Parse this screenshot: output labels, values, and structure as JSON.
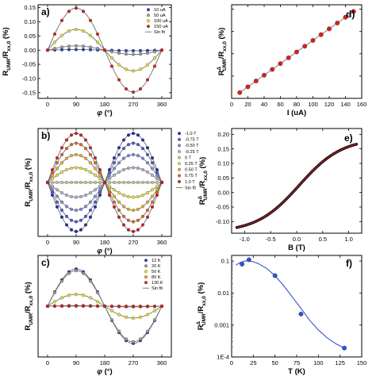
{
  "chart_data": [
    {
      "id": "a",
      "panel_label": "a)",
      "type": "scatter",
      "xlabel": "φ (°)",
      "ylabel": "R_UMR/R_xx,0 (%)",
      "xlim": [
        -30,
        390
      ],
      "ylim": [
        -0.17,
        0.16
      ],
      "xticks": [
        0,
        90,
        180,
        270,
        360
      ],
      "yticks": [
        -0.15,
        -0.1,
        -0.05,
        0.0,
        0.05,
        0.1,
        0.15
      ],
      "ytick_labels": [
        "-0.15",
        "-0.10",
        "-0.05",
        "0.00",
        "0.05",
        "0.10",
        "0.15"
      ],
      "x": [
        0,
        22.5,
        45,
        67.5,
        90,
        112.5,
        135,
        157.5,
        180,
        202.5,
        225,
        247.5,
        270,
        292.5,
        315,
        337.5,
        360
      ],
      "series": [
        {
          "name": "10 uA",
          "color": "#2b3fbf",
          "amplitude": 0.002
        },
        {
          "name": "50 uA",
          "color": "#9b9b9b",
          "amplitude": 0.015
        },
        {
          "name": "100 uA",
          "color": "#e8e020",
          "amplitude": 0.073
        },
        {
          "name": "150 uA",
          "color": "#d62020",
          "amplitude": 0.148
        }
      ],
      "fit_name": "Sin fit",
      "legend_position": "top-right"
    },
    {
      "id": "b",
      "panel_label": "b)",
      "type": "scatter",
      "xlabel": "φ (°)",
      "ylabel": "R_UMR/R_xx,0 (%)",
      "xlim": [
        -30,
        390
      ],
      "ylim": [
        -0.165,
        0.165
      ],
      "xticks": [
        0,
        90,
        180,
        270,
        360
      ],
      "yticks": [],
      "x": [
        0,
        15,
        30,
        45,
        60,
        75,
        90,
        105,
        120,
        135,
        150,
        165,
        180,
        195,
        210,
        225,
        240,
        255,
        270,
        285,
        300,
        315,
        330,
        345,
        360
      ],
      "series": [
        {
          "name": "-1.0 T",
          "color": "#1f2fa8",
          "amplitude": -0.15
        },
        {
          "name": "-0.75 T",
          "color": "#4a5fd0",
          "amplitude": -0.12
        },
        {
          "name": "-0.50 T",
          "color": "#8088d8",
          "amplitude": -0.085
        },
        {
          "name": "-0.25 T",
          "color": "#b0b0c8",
          "amplitude": -0.045
        },
        {
          "name": "0 T",
          "color": "#c8c8a0",
          "amplitude": 0.0
        },
        {
          "name": "0.25 T",
          "color": "#e6e040",
          "amplitude": 0.045
        },
        {
          "name": "0.50 T",
          "color": "#e3b02c",
          "amplitude": 0.085
        },
        {
          "name": "0.75 T",
          "color": "#d86a2a",
          "amplitude": 0.12
        },
        {
          "name": "1.0 T",
          "color": "#cf1f1f",
          "amplitude": 0.15
        }
      ],
      "fit_name": "Sin fit",
      "legend_position": "top-right"
    },
    {
      "id": "c",
      "panel_label": "c)",
      "type": "scatter",
      "xlabel": "φ (°)",
      "ylabel": "R_UMR/R_xx,0 (%)",
      "xlim": [
        -30,
        390
      ],
      "ylim": [
        -0.15,
        0.15
      ],
      "xticks": [
        0,
        90,
        180,
        270,
        360
      ],
      "yticks": [],
      "x": [
        0,
        22.5,
        45,
        67.5,
        90,
        112.5,
        135,
        157.5,
        180,
        202.5,
        225,
        247.5,
        270,
        292.5,
        315,
        337.5,
        360
      ],
      "series": [
        {
          "name": "12 K",
          "color": "#2b3fbf",
          "amplitude": 0.11
        },
        {
          "name": "20 K",
          "color": "#9b9b9b",
          "amplitude": 0.105
        },
        {
          "name": "50 K",
          "color": "#e8e020",
          "amplitude": 0.035
        },
        {
          "name": "80 K",
          "color": "#e39a2a",
          "amplitude": 0.002
        },
        {
          "name": "130 K",
          "color": "#d62020",
          "amplitude": 0.0002
        }
      ],
      "fit_name": "Sin fit",
      "legend_position": "top-right"
    },
    {
      "id": "d",
      "panel_label": "d)",
      "type": "scatter",
      "xlabel": "I (uA)",
      "ylabel": "R^Δ_UMR/R_xx,0 (%)",
      "xlim": [
        0,
        160
      ],
      "ylim": [
        0,
        0.21
      ],
      "xticks": [
        0,
        20,
        40,
        60,
        80,
        100,
        120,
        140,
        160
      ],
      "yticks": [
        0,
        0.05,
        0.1,
        0.15,
        0.2
      ],
      "ytick_labels": [],
      "x": [
        10,
        20,
        30,
        40,
        50,
        60,
        70,
        80,
        90,
        100,
        110,
        120,
        130,
        140,
        150
      ],
      "y": [
        0.013,
        0.026,
        0.039,
        0.052,
        0.065,
        0.078,
        0.091,
        0.104,
        0.117,
        0.13,
        0.143,
        0.156,
        0.169,
        0.182,
        0.195
      ],
      "fit": {
        "x": [
          10,
          150
        ],
        "y": [
          0.013,
          0.195
        ]
      },
      "marker_color": "#d62020",
      "line_color": "#8a8a8a"
    },
    {
      "id": "e",
      "panel_label": "e)",
      "type": "scatter",
      "xlabel": "B (T)",
      "ylabel": "R^Δ_UMR/R_xx,0 (%)",
      "xlim": [
        -1.25,
        1.25
      ],
      "ylim": [
        -0.14,
        0.22
      ],
      "xticks": [
        -1.0,
        -0.5,
        0.0,
        0.5,
        1.0
      ],
      "xtick_labels": [
        "-1.0",
        "-0.5",
        "0.0",
        "0.5",
        "1.0"
      ],
      "yticks": [
        -0.1,
        -0.05,
        0.0,
        0.05,
        0.1,
        0.15,
        0.2
      ],
      "ytick_labels": [
        "-0.10",
        "-0.05",
        "0.00",
        "0.05",
        "0.10",
        "0.15",
        "0.20"
      ],
      "curve": {
        "b_min": -1.15,
        "b_max": 1.15,
        "center": 0.05,
        "amplitude": 0.165,
        "scale": 0.82,
        "offset": 0.025
      },
      "marker_color": "#111111",
      "line_color": "#d62020"
    },
    {
      "id": "f",
      "panel_label": "f)",
      "type": "scatter",
      "xlabel": "T (K)",
      "ylabel": "R^Δ_UMR/R_xx,0 (%)",
      "log_y": true,
      "xlim": [
        0,
        150
      ],
      "ylim": [
        0.0001,
        0.15
      ],
      "xticks": [
        0,
        25,
        50,
        75,
        100,
        125,
        150
      ],
      "xtick_labels": [
        "0",
        "25",
        "50",
        "75",
        "100",
        "125",
        "150"
      ],
      "yticks": [
        0.0001,
        0.001,
        0.01,
        0.1
      ],
      "ytick_labels": [
        "1E-4",
        "0.001",
        "0.01",
        "0.1"
      ],
      "x": [
        12,
        20,
        50,
        80,
        130
      ],
      "y": [
        0.08,
        0.11,
        0.035,
        0.0022,
        0.00019
      ],
      "fit": {
        "x": [
          5,
          10,
          15,
          20,
          25,
          30,
          40,
          50,
          60,
          70,
          80,
          90,
          100,
          110,
          120,
          130
        ],
        "y": [
          0.075,
          0.09,
          0.1,
          0.1,
          0.095,
          0.085,
          0.06,
          0.035,
          0.017,
          0.0075,
          0.0033,
          0.0014,
          0.0007,
          0.0004,
          0.00026,
          0.00019
        ]
      },
      "marker_color": "#2f52d0",
      "line_color": "#2f52d0"
    }
  ]
}
